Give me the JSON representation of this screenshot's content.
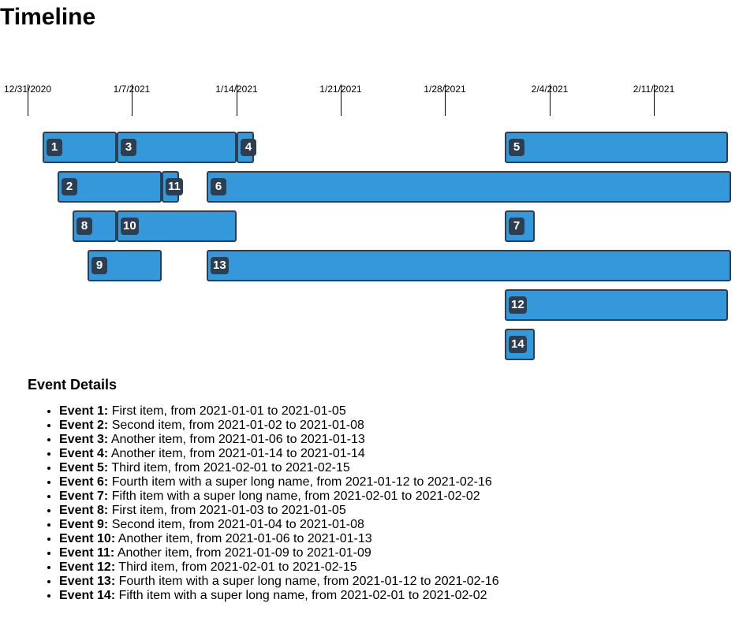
{
  "page_title": "Timeline",
  "axis": {
    "start": "2020-12-31",
    "ticks": [
      {
        "label": "12/31/2020",
        "date": "2020-12-31"
      },
      {
        "label": "1/7/2021",
        "date": "2021-01-07"
      },
      {
        "label": "1/14/2021",
        "date": "2021-01-14"
      },
      {
        "label": "1/21/2021",
        "date": "2021-01-21"
      },
      {
        "label": "1/28/2021",
        "date": "2021-01-28"
      },
      {
        "label": "2/4/2021",
        "date": "2021-02-04"
      },
      {
        "label": "2/11/2021",
        "date": "2021-02-11"
      }
    ]
  },
  "colors": {
    "bar_fill": "#3498db",
    "bar_border": "#2c3e50",
    "badge_bg": "#2c3e50",
    "badge_text": "#ffffff"
  },
  "events": [
    {
      "id": "1",
      "label": "Event 1:",
      "desc": "First item, from 2021-01-01 to 2021-01-05",
      "start": "2021-01-01",
      "end": "2021-01-05",
      "lane": 0
    },
    {
      "id": "2",
      "label": "Event 2:",
      "desc": "Second item, from 2021-01-02 to 2021-01-08",
      "start": "2021-01-02",
      "end": "2021-01-08",
      "lane": 1
    },
    {
      "id": "3",
      "label": "Event 3:",
      "desc": "Another item, from 2021-01-06 to 2021-01-13",
      "start": "2021-01-06",
      "end": "2021-01-13",
      "lane": 0
    },
    {
      "id": "4",
      "label": "Event 4:",
      "desc": "Another item, from 2021-01-14 to 2021-01-14",
      "start": "2021-01-14",
      "end": "2021-01-14",
      "lane": 0
    },
    {
      "id": "5",
      "label": "Event 5:",
      "desc": "Third item, from 2021-02-01 to 2021-02-15",
      "start": "2021-02-01",
      "end": "2021-02-15",
      "lane": 0
    },
    {
      "id": "6",
      "label": "Event 6:",
      "desc": "Fourth item with a super long name, from 2021-01-12 to 2021-02-16",
      "start": "2021-01-12",
      "end": "2021-02-16",
      "lane": 1
    },
    {
      "id": "7",
      "label": "Event 7:",
      "desc": "Fifth item with a super long name, from 2021-02-01 to 2021-02-02",
      "start": "2021-02-01",
      "end": "2021-02-02",
      "lane": 2
    },
    {
      "id": "8",
      "label": "Event 8:",
      "desc": "First item, from 2021-01-03 to 2021-01-05",
      "start": "2021-01-03",
      "end": "2021-01-05",
      "lane": 2
    },
    {
      "id": "9",
      "label": "Event 9:",
      "desc": "Second item, from 2021-01-04 to 2021-01-08",
      "start": "2021-01-04",
      "end": "2021-01-08",
      "lane": 3
    },
    {
      "id": "10",
      "label": "Event 10:",
      "desc": "Another item, from 2021-01-06 to 2021-01-13",
      "start": "2021-01-06",
      "end": "2021-01-13",
      "lane": 2
    },
    {
      "id": "11",
      "label": "Event 11:",
      "desc": "Another item, from 2021-01-09 to 2021-01-09",
      "start": "2021-01-09",
      "end": "2021-01-09",
      "lane": 1
    },
    {
      "id": "12",
      "label": "Event 12:",
      "desc": "Third item, from 2021-02-01 to 2021-02-15",
      "start": "2021-02-01",
      "end": "2021-02-15",
      "lane": 4
    },
    {
      "id": "13",
      "label": "Event 13:",
      "desc": "Fourth item with a super long name, from 2021-01-12 to 2021-02-16",
      "start": "2021-01-12",
      "end": "2021-02-16",
      "lane": 3
    },
    {
      "id": "14",
      "label": "Event 14:",
      "desc": "Fifth item with a super long name, from 2021-02-01 to 2021-02-02",
      "start": "2021-02-01",
      "end": "2021-02-02",
      "lane": 5
    }
  ],
  "details": {
    "heading": "Event Details"
  }
}
